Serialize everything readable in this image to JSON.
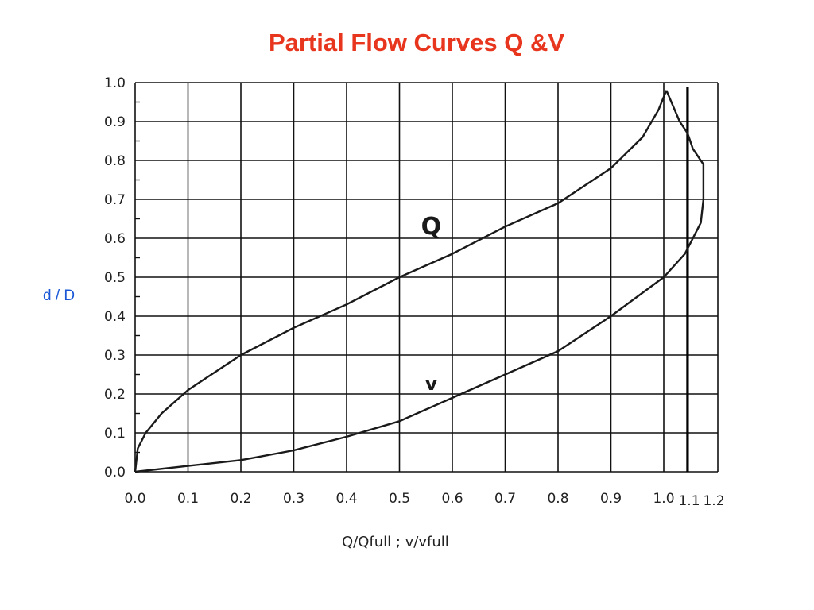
{
  "chart_data": {
    "type": "line",
    "title": "Partial Flow Curves Q &V",
    "xlabel": "Q/Qfull  ;  v/vfull",
    "ylabel": "d / D",
    "xlim": [
      0,
      1.1
    ],
    "ylim": [
      0,
      1.0
    ],
    "grid": true,
    "x_ticks": [
      "0.0",
      "0.1",
      "0.2",
      "0.3",
      "0.4",
      "0.5",
      "0.6",
      "0.7",
      "0.8",
      "0.9",
      "1.0"
    ],
    "y_ticks": [
      "0.0",
      "0.1",
      "0.2",
      "0.3",
      "0.4",
      "0.5",
      "0.6",
      "0.7",
      "0.8",
      "0.9",
      "1.0"
    ],
    "extra_x_labels": [
      "1.1",
      "1.2"
    ],
    "reference_line": {
      "x": 1.045
    },
    "series": [
      {
        "name": "Q",
        "points": [
          [
            0.0,
            0.0
          ],
          [
            0.005,
            0.06
          ],
          [
            0.02,
            0.1
          ],
          [
            0.05,
            0.15
          ],
          [
            0.1,
            0.21
          ],
          [
            0.2,
            0.3
          ],
          [
            0.3,
            0.37
          ],
          [
            0.4,
            0.43
          ],
          [
            0.5,
            0.5
          ],
          [
            0.6,
            0.56
          ],
          [
            0.7,
            0.63
          ],
          [
            0.8,
            0.69
          ],
          [
            0.9,
            0.78
          ],
          [
            0.96,
            0.86
          ],
          [
            0.99,
            0.93
          ],
          [
            1.005,
            0.98
          ]
        ]
      },
      {
        "name": "v",
        "points": [
          [
            0.0,
            0.0
          ],
          [
            0.1,
            0.015
          ],
          [
            0.2,
            0.03
          ],
          [
            0.3,
            0.055
          ],
          [
            0.4,
            0.09
          ],
          [
            0.5,
            0.13
          ],
          [
            0.6,
            0.19
          ],
          [
            0.7,
            0.25
          ],
          [
            0.8,
            0.31
          ],
          [
            0.9,
            0.4
          ],
          [
            1.0,
            0.5
          ],
          [
            1.04,
            0.56
          ],
          [
            1.07,
            0.64
          ],
          [
            1.075,
            0.7
          ],
          [
            1.075,
            0.79
          ],
          [
            1.055,
            0.83
          ],
          [
            1.045,
            0.87
          ],
          [
            1.03,
            0.9
          ],
          [
            1.005,
            0.98
          ]
        ]
      }
    ]
  }
}
